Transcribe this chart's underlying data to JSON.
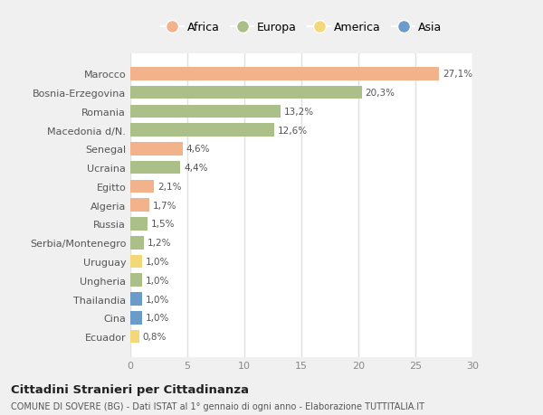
{
  "categories": [
    "Marocco",
    "Bosnia-Erzegovina",
    "Romania",
    "Macedonia d/N.",
    "Senegal",
    "Ucraina",
    "Egitto",
    "Algeria",
    "Russia",
    "Serbia/Montenegro",
    "Uruguay",
    "Ungheria",
    "Thailandia",
    "Cina",
    "Ecuador"
  ],
  "values": [
    27.1,
    20.3,
    13.2,
    12.6,
    4.6,
    4.4,
    2.1,
    1.7,
    1.5,
    1.2,
    1.0,
    1.0,
    1.0,
    1.0,
    0.8
  ],
  "labels": [
    "27,1%",
    "20,3%",
    "13,2%",
    "12,6%",
    "4,6%",
    "4,4%",
    "2,1%",
    "1,7%",
    "1,5%",
    "1,2%",
    "1,0%",
    "1,0%",
    "1,0%",
    "1,0%",
    "0,8%"
  ],
  "continents": [
    "Africa",
    "Europa",
    "Europa",
    "Europa",
    "Africa",
    "Europa",
    "Africa",
    "Africa",
    "Europa",
    "Europa",
    "America",
    "Europa",
    "Asia",
    "Asia",
    "America"
  ],
  "colors": {
    "Africa": "#F2B28C",
    "Europa": "#ABBF88",
    "America": "#F2D878",
    "Asia": "#6B9BC8"
  },
  "legend_labels": [
    "Africa",
    "Europa",
    "America",
    "Asia"
  ],
  "legend_colors": [
    "#F2B28C",
    "#ABBF88",
    "#F2D878",
    "#6B9BC8"
  ],
  "xlim": [
    0,
    30
  ],
  "xticks": [
    0,
    5,
    10,
    15,
    20,
    25,
    30
  ],
  "title": "Cittadini Stranieri per Cittadinanza",
  "subtitle": "COMUNE DI SOVERE (BG) - Dati ISTAT al 1° gennaio di ogni anno - Elaborazione TUTTITALIA.IT",
  "fig_bg_color": "#f0f0f0",
  "plot_bg_color": "#ffffff",
  "bar_height": 0.7,
  "grid_color": "#e0e0e0"
}
